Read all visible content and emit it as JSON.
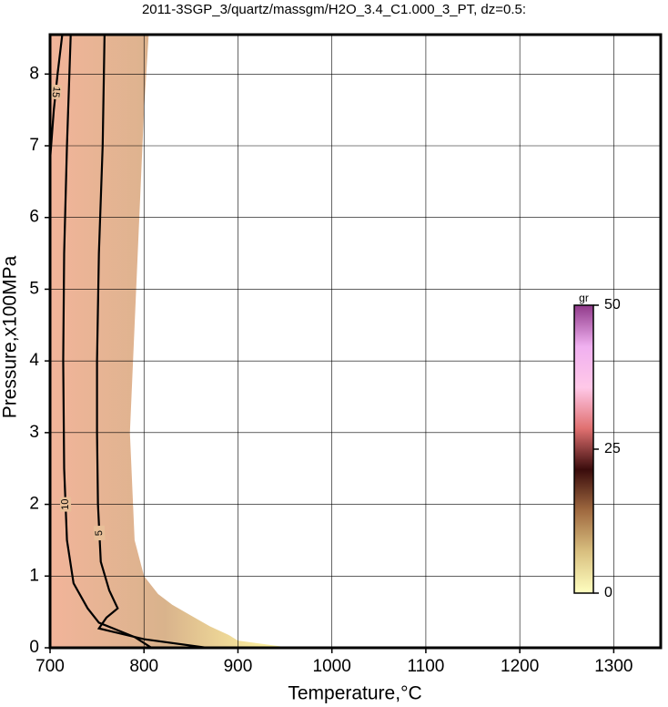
{
  "chart_data": {
    "type": "contour",
    "title": "2011-3SGP_3/quartz/massgm/H2O_3.4_C1.000_3_PT, dz=0.5:",
    "x_label": "Temperature,°C",
    "y_label": "Pressure,x100MPa",
    "xlim": [
      700,
      1350
    ],
    "xticks": [
      700,
      800,
      900,
      1000,
      1100,
      1200,
      1300
    ],
    "ylim": [
      0,
      8.55
    ],
    "yticks": [
      0,
      1,
      2,
      3,
      4,
      5,
      6,
      7,
      8
    ],
    "grid": true,
    "filled_region": {
      "x": [
        700,
        805,
        800,
        795,
        790,
        785,
        790,
        800,
        815,
        830,
        850,
        870,
        890,
        900,
        945,
        945,
        700
      ],
      "y": [
        8.55,
        8.55,
        7.5,
        6,
        4.5,
        3,
        1.5,
        1.0,
        0.75,
        0.6,
        0.45,
        0.3,
        0.18,
        0.1,
        0.02,
        0,
        0
      ],
      "colors": [
        "#f2b49a",
        "#d9b38c",
        "#fff6a0"
      ]
    },
    "contours": [
      {
        "level": 15,
        "x": [
          700,
          704,
          708,
          713
        ],
        "y": [
          6.8,
          7.5,
          8.0,
          8.55
        ]
      },
      {
        "level": 10,
        "x": [
          722,
          718,
          715,
          714,
          715,
          718,
          725,
          740,
          752,
          790,
          808
        ],
        "y": [
          8.55,
          7,
          5.5,
          4,
          2.5,
          1.5,
          0.9,
          0.55,
          0.35,
          0.15,
          0
        ]
      },
      {
        "level": 5,
        "x": [
          758,
          756,
          752,
          750,
          750,
          751,
          754,
          763,
          772,
          760,
          752,
          800,
          867
        ],
        "y": [
          8.55,
          7,
          5.5,
          4,
          3,
          2,
          1.2,
          0.8,
          0.55,
          0.42,
          0.27,
          0.12,
          0
        ]
      }
    ],
    "colorbar": {
      "label": "gr",
      "lim": [
        0,
        50
      ],
      "ticks": [
        0,
        25,
        50
      ],
      "colors": [
        "#ffffc0",
        "#d9c080",
        "#a06a40",
        "#3a0c0c",
        "#e07070",
        "#ffc8e8",
        "#f0b0f0",
        "#903a8a"
      ]
    }
  }
}
